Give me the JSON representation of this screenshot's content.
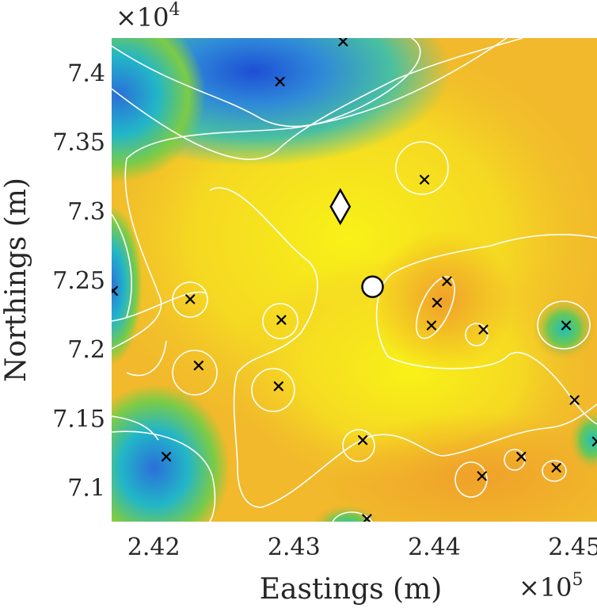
{
  "chart_data": {
    "type": "heatmap",
    "title": "",
    "xlabel": "Eastings (m)",
    "ylabel": "Northings (m)",
    "x_multiplier_base": "×10",
    "x_multiplier_exp": "5",
    "y_multiplier_base": "×10",
    "y_multiplier_exp": "4",
    "xlim": [
      2.417,
      2.4516
    ],
    "ylim": [
      7.075,
      7.425
    ],
    "xticks": [
      2.42,
      2.43,
      2.44,
      2.45
    ],
    "xtick_labels": [
      "2.42",
      "2.43",
      "2.44",
      "2.45"
    ],
    "yticks": [
      7.1,
      7.15,
      7.2,
      7.25,
      7.3,
      7.35,
      7.4
    ],
    "ytick_labels": [
      "7.1",
      "7.15",
      "7.2",
      "7.25",
      "7.3",
      "7.35",
      "7.4"
    ],
    "colormap": [
      "#2a6fd9",
      "#22b6c8",
      "#78c94a",
      "#f4a428",
      "#f7ea1a"
    ],
    "sample_points": [
      {
        "x": 2.4335,
        "y": 7.4225
      },
      {
        "x": 2.429,
        "y": 7.3935
      },
      {
        "x": 2.4393,
        "y": 7.3225
      },
      {
        "x": 2.4409,
        "y": 7.249
      },
      {
        "x": 2.4402,
        "y": 7.2335
      },
      {
        "x": 2.4398,
        "y": 7.217
      },
      {
        "x": 2.4435,
        "y": 7.214
      },
      {
        "x": 2.4494,
        "y": 7.217
      },
      {
        "x": 2.4171,
        "y": 7.242
      },
      {
        "x": 2.4226,
        "y": 7.236
      },
      {
        "x": 2.4291,
        "y": 7.221
      },
      {
        "x": 2.4232,
        "y": 7.188
      },
      {
        "x": 2.4289,
        "y": 7.173
      },
      {
        "x": 2.4349,
        "y": 7.134
      },
      {
        "x": 2.4209,
        "y": 7.122
      },
      {
        "x": 2.4352,
        "y": 7.077
      },
      {
        "x": 2.4434,
        "y": 7.108
      },
      {
        "x": 2.4462,
        "y": 7.122
      },
      {
        "x": 2.4487,
        "y": 7.114
      },
      {
        "x": 2.45,
        "y": 7.163
      },
      {
        "x": 2.4516,
        "y": 7.133
      }
    ],
    "markers": [
      {
        "shape": "diamond",
        "x": 2.4333,
        "y": 7.303,
        "fill": "#ffffff"
      },
      {
        "shape": "circle",
        "x": 2.4356,
        "y": 7.245,
        "fill": "#ffffff"
      }
    ],
    "contour_color": "#ffffff",
    "marker_color": "#000000"
  }
}
